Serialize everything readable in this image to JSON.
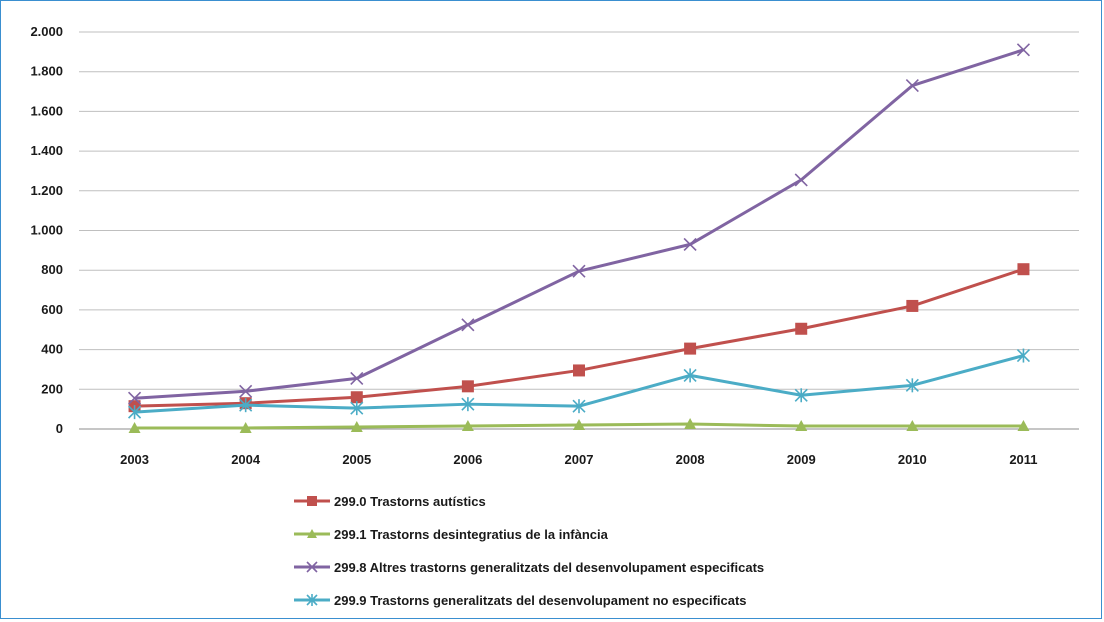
{
  "chart_data": {
    "type": "line",
    "categories": [
      "2003",
      "2004",
      "2005",
      "2006",
      "2007",
      "2008",
      "2009",
      "2010",
      "2011"
    ],
    "ylim": [
      0,
      2000
    ],
    "yticks": [
      0,
      200,
      400,
      600,
      800,
      1000,
      1200,
      1400,
      1600,
      1800,
      2000
    ],
    "ytick_labels": [
      "0",
      "200",
      "400",
      "600",
      "800",
      "1.000",
      "1.200",
      "1.400",
      "1.600",
      "1.800",
      "2.000"
    ],
    "grid": true,
    "legend_position": "bottom",
    "series": [
      {
        "name": "299.0 Trastorns autístics",
        "color": "#c0504d",
        "marker": "square",
        "values": [
          115,
          130,
          160,
          215,
          295,
          405,
          505,
          620,
          805
        ]
      },
      {
        "name": "299.1 Trastorns desintegratius de la infància",
        "color": "#9bbb59",
        "marker": "triangle",
        "values": [
          5,
          5,
          10,
          15,
          20,
          25,
          15,
          15,
          15
        ]
      },
      {
        "name": "299.8 Altres trastorns generalitzats del desenvolupament especificats",
        "color": "#8064a2",
        "marker": "x",
        "values": [
          155,
          190,
          255,
          525,
          795,
          930,
          1255,
          1730,
          1910
        ]
      },
      {
        "name": "299.9 Trastorns generalitzats del desenvolupament no especificats",
        "color": "#4bacc6",
        "marker": "star",
        "values": [
          85,
          120,
          105,
          125,
          115,
          270,
          170,
          220,
          370
        ]
      }
    ]
  }
}
